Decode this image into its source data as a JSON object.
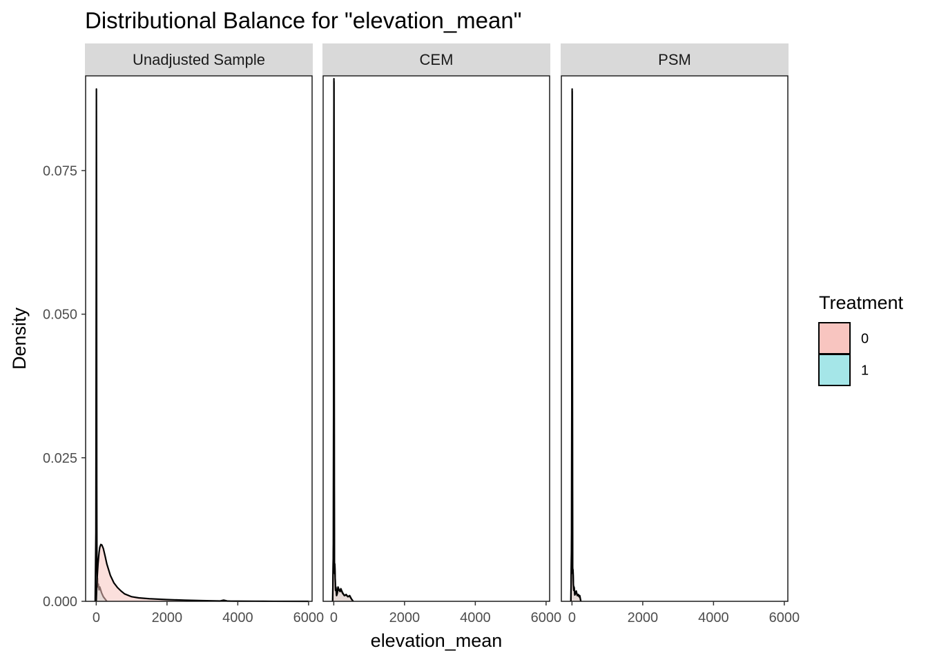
{
  "chart_data": {
    "type": "area",
    "title": "Distributional Balance for \"elevation_mean\"",
    "xlabel": "elevation_mean",
    "ylabel": "Density",
    "xlim": [
      -300,
      6100
    ],
    "ylim": [
      0,
      0.0915
    ],
    "x_ticks": [
      0,
      2000,
      4000,
      6000
    ],
    "x_tick_labels": [
      "0",
      "2000",
      "4000",
      "6000"
    ],
    "y_ticks": [
      0,
      0.025,
      0.05,
      0.075
    ],
    "y_tick_labels": [
      "0.000",
      "0.025",
      "0.050",
      "0.075"
    ],
    "legend": {
      "title": "Treatment",
      "placement": "right",
      "entries": [
        {
          "label": "0",
          "color": "#F8C5C0"
        },
        {
          "label": "1",
          "color": "#A5E6E8"
        }
      ]
    },
    "facets": [
      {
        "label": "Unadjusted Sample",
        "series": [
          {
            "name": "1",
            "color": "#A5E6E8",
            "x": [
              -30,
              -10,
              0,
              5,
              10,
              15,
              20,
              25,
              30,
              35,
              40,
              50,
              60,
              80,
              100,
              150,
              200,
              300
            ],
            "y": [
              0,
              0.012,
              0.06,
              0.0892,
              0.06,
              0.02,
              0.006,
              0.004,
              0.0035,
              0.004,
              0.003,
              0.0025,
              0.003,
              0.002,
              0.0025,
              0.0015,
              0.0008,
              0
            ]
          },
          {
            "name": "0",
            "color": "#F8C5C0",
            "x": [
              0,
              20,
              50,
              80,
              100,
              130,
              160,
              200,
              250,
              300,
              400,
              500,
              600,
              700,
              800,
              1000,
              1200,
              1500,
              2000,
              2500,
              3000,
              3500,
              3600,
              3700,
              3800,
              4000,
              4500,
              5000,
              6000
            ],
            "y": [
              0,
              0.0035,
              0.0065,
              0.0085,
              0.0094,
              0.0099,
              0.0098,
              0.0092,
              0.0079,
              0.0065,
              0.0045,
              0.0032,
              0.0024,
              0.0018,
              0.0013,
              0.0008,
              0.0006,
              0.00045,
              0.0003,
              0.0002,
              0.00012,
              6e-05,
              0.0002,
              6e-05,
              4e-05,
              3e-05,
              2e-05,
              1e-05,
              0
            ]
          }
        ]
      },
      {
        "label": "CEM",
        "series": [
          {
            "name": "1",
            "color": "#A5E6E8",
            "x": [
              -30,
              -10,
              0,
              5,
              10,
              15,
              20,
              25,
              30,
              40,
              50,
              60,
              80,
              100,
              120,
              150,
              180,
              200,
              250,
              300,
              350,
              400,
              450,
              500,
              550
            ],
            "y": [
              0,
              0.01,
              0.06,
              0.091,
              0.06,
              0.02,
              0.007,
              0.005,
              0.0065,
              0.004,
              0.002,
              0.0025,
              0.001,
              0.0015,
              0.0025,
              0.002,
              0.0018,
              0.0022,
              0.0015,
              0.001,
              0.0012,
              0.0008,
              0.001,
              0.0004,
              0
            ]
          },
          {
            "name": "0",
            "color": "#F8C5C0",
            "x": [
              -30,
              -10,
              0,
              5,
              10,
              15,
              20,
              25,
              30,
              40,
              50,
              60,
              80,
              100,
              120,
              150,
              180,
              200,
              250,
              300,
              350,
              400,
              450,
              500,
              550
            ],
            "y": [
              0,
              0.01,
              0.058,
              0.0905,
              0.058,
              0.019,
              0.0068,
              0.0048,
              0.0063,
              0.0039,
              0.0019,
              0.0024,
              0.001,
              0.0014,
              0.0024,
              0.0019,
              0.0017,
              0.0021,
              0.0014,
              0.001,
              0.0011,
              0.0008,
              0.0009,
              0.0004,
              0
            ]
          }
        ]
      },
      {
        "label": "PSM",
        "series": [
          {
            "name": "1",
            "color": "#A5E6E8",
            "x": [
              -30,
              -10,
              0,
              5,
              10,
              15,
              20,
              25,
              30,
              40,
              50,
              60,
              80,
              100,
              120,
              150,
              180,
              200,
              220,
              250
            ],
            "y": [
              0,
              0.012,
              0.06,
              0.0892,
              0.06,
              0.02,
              0.006,
              0.005,
              0.0055,
              0.003,
              0.002,
              0.0025,
              0.0012,
              0.0015,
              0.0018,
              0.001,
              0.0012,
              0.0008,
              0.001,
              0
            ]
          },
          {
            "name": "0",
            "color": "#F8C5C0",
            "x": [
              -30,
              -10,
              0,
              5,
              10,
              15,
              20,
              25,
              30,
              40,
              50,
              60,
              80,
              100,
              120,
              150,
              180,
              200,
              220,
              250
            ],
            "y": [
              0,
              0.011,
              0.058,
              0.0888,
              0.058,
              0.019,
              0.0058,
              0.0048,
              0.0052,
              0.0029,
              0.0019,
              0.0024,
              0.0011,
              0.0014,
              0.0017,
              0.001,
              0.0011,
              0.0008,
              0.0009,
              0
            ]
          }
        ]
      }
    ]
  }
}
